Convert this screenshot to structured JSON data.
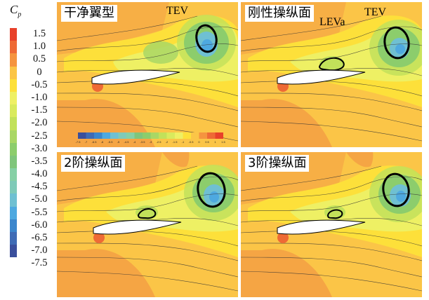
{
  "legend": {
    "title": "C",
    "subscript": "p",
    "colors": [
      "#e8412a",
      "#ee6a35",
      "#f5943f",
      "#fbc547",
      "#fde03a",
      "#eef064",
      "#d9ea5d",
      "#c2e15a",
      "#a9d765",
      "#8ccd6c",
      "#7fc57b",
      "#86d0a5",
      "#7fcab8",
      "#6fc0d2",
      "#4ea9e0",
      "#3c86cc",
      "#3f6bb5",
      "#3a4f9c"
    ],
    "ticks": [
      "1.5",
      "1.0",
      "0.5",
      "0",
      "-0.5",
      "-1.0",
      "-1.5",
      "-2.0",
      "-2.5",
      "-3.0",
      "-3.5",
      "-4.0",
      "-4.5",
      "-5.0",
      "-5.5",
      "-6.0",
      "-6.5",
      "-7.0",
      "-7.5"
    ]
  },
  "inset_colorbar": {
    "ticks": [
      "-7.5",
      "-7",
      "-6.5",
      "-6",
      "-5.5",
      "-5",
      "-4.5",
      "-4",
      "-3.5",
      "-3",
      "-2.5",
      "-2",
      "-1.5",
      "-1",
      "-0.5",
      "0",
      "0.5",
      "1",
      "1.5"
    ]
  },
  "panels": [
    {
      "label": "干净翼型",
      "vortex_labels": [
        "TEV"
      ]
    },
    {
      "label": "刚性操纵面",
      "vortex_labels": [
        "LEVa",
        "TEV"
      ]
    },
    {
      "label": "2阶操纵面",
      "vortex_labels": []
    },
    {
      "label": "3阶操纵面",
      "vortex_labels": []
    }
  ]
}
